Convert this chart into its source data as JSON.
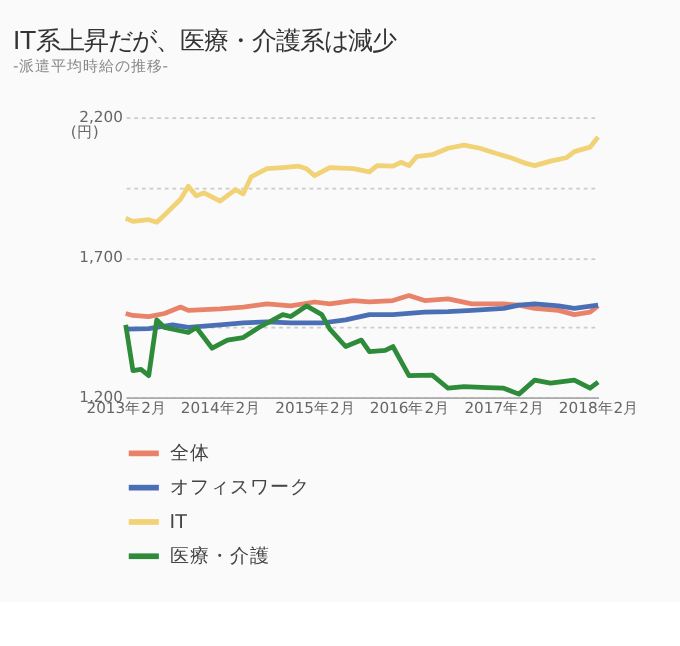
{
  "chart_data": {
    "type": "line",
    "title": "IT系上昇だが、医療・介護系は減少",
    "subtitle": "-派遣平均時給の推移-",
    "ylabel": "(円)",
    "xlim": [
      "2013-02",
      "2018-02"
    ],
    "xticks": [
      {
        "value": "2013-02",
        "label": "2013年2月"
      },
      {
        "value": "2014-02",
        "label": "2014年2月"
      },
      {
        "value": "2015-02",
        "label": "2015年2月"
      },
      {
        "value": "2016-02",
        "label": "2016年2月"
      },
      {
        "value": "2017-02",
        "label": "2017年2月"
      },
      {
        "value": "2018-02",
        "label": "2018年2月"
      }
    ],
    "ylim": [
      1200,
      2200
    ],
    "yticks": [
      {
        "value": 1200,
        "label": "1,200"
      },
      {
        "value": 1450,
        "label": null
      },
      {
        "value": 1700,
        "label": "1,700"
      },
      {
        "value": 1950,
        "label": null
      },
      {
        "value": 2200,
        "label": "2,200"
      }
    ],
    "grid": "y",
    "legend": "bottom",
    "marker": "none",
    "line_style": "solid",
    "series": [
      {
        "name": "全体",
        "color": "#e8836a",
        "x": [
          "2013-02",
          "2013-03",
          "2013-05",
          "2013-07",
          "2013-09",
          "2013-10",
          "2014-02",
          "2014-05",
          "2014-08",
          "2014-11",
          "2015-02",
          "2015-04",
          "2015-07",
          "2015-09",
          "2015-12",
          "2016-02",
          "2016-04",
          "2016-07",
          "2016-10",
          "2017-02",
          "2017-04",
          "2017-06",
          "2017-09",
          "2017-11",
          "2018-01",
          "2018-02"
        ],
        "values": [
          1499,
          1492,
          1488,
          1499,
          1522,
          1510,
          1515,
          1522,
          1533,
          1526,
          1540,
          1533,
          1545,
          1540,
          1545,
          1563,
          1545,
          1551,
          1533,
          1533,
          1529,
          1517,
          1510,
          1495,
          1504,
          1526
        ]
      },
      {
        "name": "オフィスワーク",
        "color": "#4a6fb5",
        "x": [
          "2013-02",
          "2013-05",
          "2013-08",
          "2013-10",
          "2014-02",
          "2014-05",
          "2014-08",
          "2014-11",
          "2015-03",
          "2015-06",
          "2015-09",
          "2015-12",
          "2016-04",
          "2016-07",
          "2016-10",
          "2017-02",
          "2017-04",
          "2017-06",
          "2017-09",
          "2017-11",
          "2018-02"
        ],
        "values": [
          1443,
          1445,
          1458,
          1449,
          1458,
          1465,
          1469,
          1465,
          1465,
          1476,
          1495,
          1495,
          1504,
          1506,
          1510,
          1517,
          1529,
          1533,
          1526,
          1517,
          1529
        ]
      },
      {
        "name": "IT",
        "color": "#f2d276",
        "x": [
          "2013-02",
          "2013-03",
          "2013-05",
          "2013-06",
          "2013-07",
          "2013-09",
          "2013-10",
          "2013-11",
          "2013-12",
          "2014-02",
          "2014-04",
          "2014-05",
          "2014-06",
          "2014-08",
          "2014-10",
          "2014-12",
          "2015-01",
          "2015-02",
          "2015-04",
          "2015-07",
          "2015-09",
          "2015-10",
          "2015-12",
          "2016-01",
          "2016-02",
          "2016-03",
          "2016-05",
          "2016-07",
          "2016-09",
          "2016-11",
          "2017-01",
          "2017-03",
          "2017-05",
          "2017-06",
          "2017-08",
          "2017-10",
          "2017-11",
          "2018-01",
          "2018-02"
        ],
        "values": [
          1839,
          1828,
          1834,
          1825,
          1851,
          1907,
          1953,
          1919,
          1930,
          1900,
          1941,
          1926,
          1987,
          2016,
          2020,
          2025,
          2016,
          1991,
          2020,
          2016,
          2005,
          2027,
          2025,
          2039,
          2027,
          2059,
          2066,
          2089,
          2100,
          2089,
          2071,
          2055,
          2034,
          2027,
          2043,
          2055,
          2077,
          2093,
          2129
        ]
      },
      {
        "name": "医療・介護",
        "color": "#2e8b3a",
        "x": [
          "2013-02",
          "2013-03",
          "2013-04",
          "2013-05",
          "2013-06",
          "2013-07",
          "2013-10",
          "2013-11",
          "2014-01",
          "2014-03",
          "2014-05",
          "2014-07",
          "2014-10",
          "2014-11",
          "2015-01",
          "2015-03",
          "2015-04",
          "2015-06",
          "2015-08",
          "2015-09",
          "2015-11",
          "2015-12",
          "2016-01",
          "2016-02",
          "2016-05",
          "2016-07",
          "2016-09",
          "2016-12",
          "2017-02",
          "2017-04",
          "2017-06",
          "2017-08",
          "2017-11",
          "2018-01",
          "2018-02"
        ],
        "values": [
          1458,
          1295,
          1299,
          1277,
          1476,
          1449,
          1431,
          1449,
          1375,
          1404,
          1413,
          1449,
          1495,
          1488,
          1526,
          1495,
          1443,
          1381,
          1404,
          1363,
          1367,
          1381,
          1329,
          1277,
          1279,
          1232,
          1238,
          1234,
          1232,
          1211,
          1261,
          1250,
          1261,
          1232,
          1254
        ]
      }
    ]
  }
}
